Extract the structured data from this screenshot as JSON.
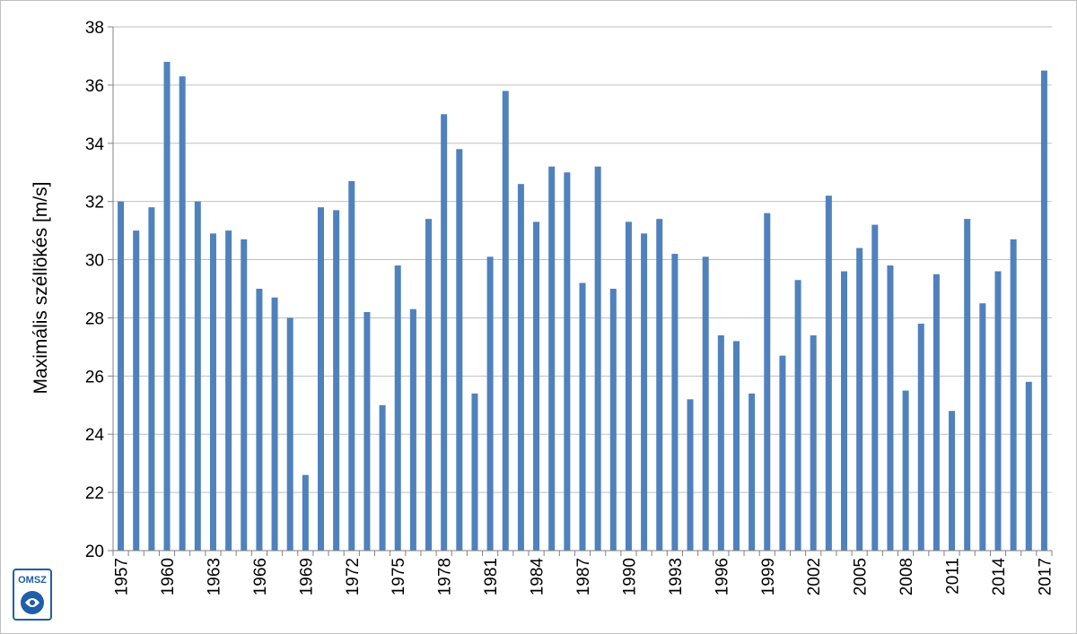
{
  "chart_data": {
    "type": "bar",
    "title": "",
    "xlabel": "",
    "ylabel": "Maximális széllökés [m/s]",
    "ylim": [
      20,
      38
    ],
    "yticks": [
      20,
      22,
      24,
      26,
      28,
      30,
      32,
      34,
      36,
      38
    ],
    "grid": true,
    "bar_color": "#4F81BD",
    "categories": [
      "1957",
      "1958",
      "1959",
      "1960",
      "1961",
      "1962",
      "1963",
      "1964",
      "1965",
      "1966",
      "1967",
      "1968",
      "1969",
      "1970",
      "1971",
      "1972",
      "1973",
      "1974",
      "1975",
      "1976",
      "1977",
      "1978",
      "1979",
      "1980",
      "1981",
      "1982",
      "1983",
      "1984",
      "1985",
      "1986",
      "1987",
      "1988",
      "1989",
      "1990",
      "1991",
      "1992",
      "1993",
      "1994",
      "1995",
      "1996",
      "1997",
      "1998",
      "1999",
      "2000",
      "2001",
      "2002",
      "2003",
      "2004",
      "2005",
      "2006",
      "2007",
      "2008",
      "2009",
      "2010",
      "2011",
      "2012",
      "2013",
      "2014",
      "2015",
      "2016",
      "2017"
    ],
    "x_tick_labels": [
      "1957",
      "1960",
      "1963",
      "1966",
      "1969",
      "1972",
      "1975",
      "1978",
      "1981",
      "1984",
      "1987",
      "1990",
      "1993",
      "1996",
      "1999",
      "2002",
      "2005",
      "2008",
      "2011",
      "2014",
      "2017"
    ],
    "values": [
      32.0,
      31.0,
      31.8,
      36.8,
      36.3,
      32.0,
      30.9,
      31.0,
      30.7,
      29.0,
      28.7,
      28.0,
      22.6,
      31.8,
      31.7,
      32.7,
      28.2,
      25.0,
      29.8,
      28.3,
      31.4,
      35.0,
      33.8,
      25.4,
      30.1,
      35.8,
      32.6,
      31.3,
      33.2,
      33.0,
      29.2,
      33.2,
      29.0,
      31.3,
      30.9,
      31.4,
      30.2,
      25.2,
      30.1,
      27.4,
      27.2,
      25.4,
      31.6,
      26.7,
      29.3,
      27.4,
      32.2,
      29.6,
      30.4,
      31.2,
      29.8,
      25.5,
      27.8,
      29.5,
      24.8,
      31.4,
      28.5,
      29.6,
      30.7,
      25.8,
      36.5
    ]
  },
  "logo": {
    "text": "OMSZ",
    "color": "#1f5ea8"
  }
}
